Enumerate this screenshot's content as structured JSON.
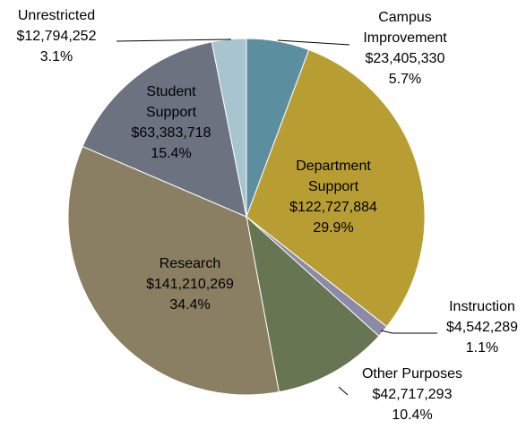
{
  "chart_data": {
    "type": "pie",
    "categories": [
      "Campus Improvement",
      "Department Support",
      "Instruction",
      "Other Purposes",
      "Research",
      "Student Support",
      "Unrestricted"
    ],
    "values": [
      23405330,
      122727884,
      4542289,
      42717293,
      141210269,
      63383718,
      12794252
    ],
    "value_labels": [
      "$23,405,330",
      "$122,727,884",
      "$4,542,289",
      "$42,717,293",
      "$141,210,269",
      "$63,383,718",
      "$12,794,252"
    ],
    "percents": [
      5.7,
      29.9,
      1.1,
      10.4,
      34.4,
      15.4,
      3.1
    ],
    "percent_labels": [
      "5.7%",
      "29.9%",
      "1.1%",
      "10.4%",
      "34.4%",
      "15.4%",
      "3.1%"
    ],
    "colors": [
      "#5b8fa0",
      "#b89e32",
      "#8c8aa8",
      "#677552",
      "#8a7f62",
      "#6c7280",
      "#a7c4cf"
    ]
  }
}
